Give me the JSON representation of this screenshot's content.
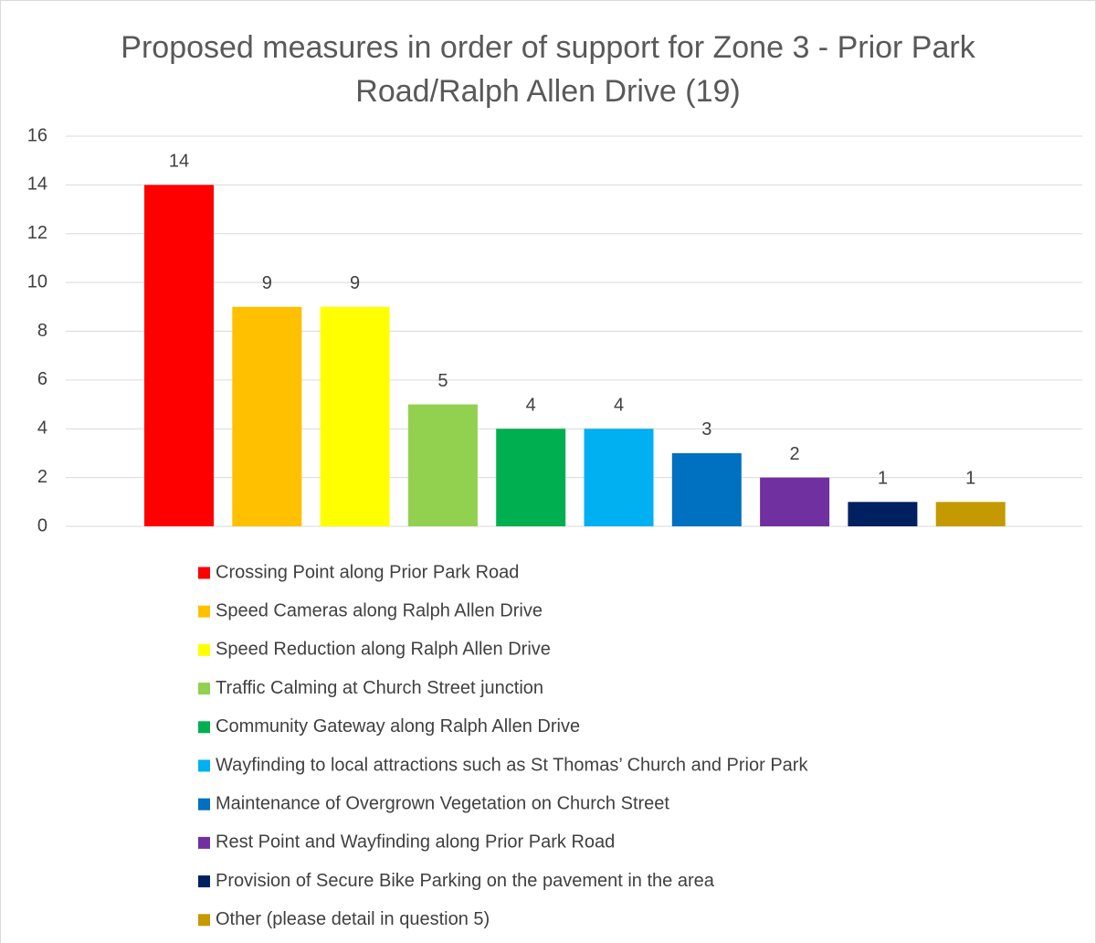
{
  "chart_data": {
    "type": "bar",
    "title": "Proposed measures in order of support for Zone 3 - Prior Park Road/Ralph Allen Drive (19)",
    "categories": [
      "Crossing Point along Prior Park Road",
      "Speed Cameras along Ralph Allen Drive",
      "Speed Reduction along Ralph Allen Drive",
      "Traffic Calming at Church Street junction",
      "Community Gateway along Ralph Allen Drive",
      "Wayfinding to local attractions such as St Thomas’ Church and Prior Park",
      "Maintenance of Overgrown Vegetation on Church Street",
      "Rest Point and Wayfinding along Prior Park Road",
      "Provision of Secure Bike Parking on the pavement in the area",
      "Other (please detail in question 5)"
    ],
    "values": [
      14,
      9,
      9,
      5,
      4,
      4,
      3,
      2,
      1,
      1
    ],
    "colors": [
      "#ff0000",
      "#ffc000",
      "#ffff00",
      "#92d050",
      "#00b050",
      "#00b0f0",
      "#0070c0",
      "#7030a0",
      "#002060",
      "#c49a00"
    ],
    "ylim": [
      0,
      16
    ],
    "yticks": [
      0,
      2,
      4,
      6,
      8,
      10,
      12,
      14,
      16
    ],
    "grid": true,
    "legend": "bottom"
  }
}
